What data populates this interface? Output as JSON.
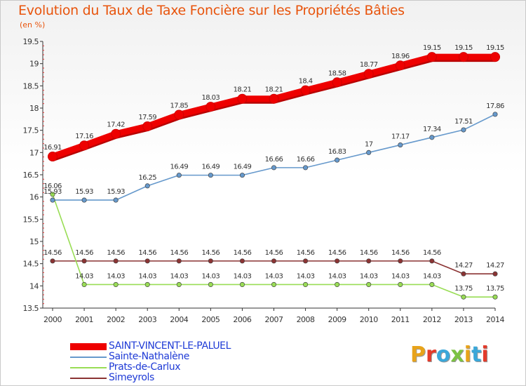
{
  "header": {
    "title": "Evolution du Taux de Taxe Foncière sur les Propriétés Bâties",
    "unit": "(en %)"
  },
  "logo": {
    "text": "Proxiti",
    "colors": [
      "#e8a31a",
      "#e33b2b",
      "#3aa7d9",
      "#7cc242",
      "#e8a31a",
      "#3aa7d9",
      "#e33b2b"
    ]
  },
  "chart_data": {
    "type": "line",
    "title": "Evolution du Taux de Taxe Foncière sur les Propriétés Bâties",
    "ylabel": "(en %)",
    "xlabel": "",
    "x": [
      "2000",
      "2001",
      "2002",
      "2003",
      "2004",
      "2005",
      "2006",
      "2007",
      "2008",
      "2009",
      "2010",
      "2011",
      "2012",
      "2013",
      "2014"
    ],
    "ylim": [
      13.5,
      19.5
    ],
    "yticks": [
      "13.5",
      "14",
      "14.5",
      "15",
      "15.5",
      "16",
      "16.5",
      "17",
      "17.5",
      "18",
      "18.5",
      "19",
      "19.5"
    ],
    "grid": false,
    "legend": "bottom-left",
    "series": [
      {
        "name": "SAINT-VINCENT-LE-PALUEL",
        "color": "#ee0000",
        "values": [
          16.91,
          17.16,
          17.42,
          17.59,
          17.85,
          18.03,
          18.21,
          18.21,
          18.4,
          18.58,
          18.77,
          18.96,
          19.15,
          19.15,
          19.15
        ],
        "labels": [
          "16.91",
          "17.16",
          "17.42",
          "17.59",
          "17.85",
          "18.03",
          "18.21",
          "18.21",
          "18.4",
          "18.58",
          "18.77",
          "18.96",
          "19.15",
          "19.15",
          "19.15"
        ]
      },
      {
        "name": "Sainte-Nathalène",
        "color": "#6699cc",
        "values": [
          15.93,
          15.93,
          15.93,
          16.25,
          16.49,
          16.49,
          16.49,
          16.66,
          16.66,
          16.83,
          17,
          17.17,
          17.34,
          17.51,
          17.86
        ],
        "labels": [
          "15.93",
          "15.93",
          "15.93",
          "16.25",
          "16.49",
          "16.49",
          "16.49",
          "16.66",
          "16.66",
          "16.83",
          "17",
          "17.17",
          "17.34",
          "17.51",
          "17.86"
        ]
      },
      {
        "name": "Prats-de-Carlux",
        "color": "#99dd55",
        "values": [
          16.06,
          14.03,
          14.03,
          14.03,
          14.03,
          14.03,
          14.03,
          14.03,
          14.03,
          14.03,
          14.03,
          14.03,
          14.03,
          13.75,
          13.75
        ],
        "labels": [
          "16.06",
          "14.03",
          "14.03",
          "14.03",
          "14.03",
          "14.03",
          "14.03",
          "14.03",
          "14.03",
          "14.03",
          "14.03",
          "14.03",
          "14.03",
          "13.75",
          "13.75"
        ]
      },
      {
        "name": "Simeyrols",
        "color": "#8b3333",
        "values": [
          14.56,
          14.56,
          14.56,
          14.56,
          14.56,
          14.56,
          14.56,
          14.56,
          14.56,
          14.56,
          14.56,
          14.56,
          14.56,
          14.27,
          14.27
        ],
        "labels": [
          "14.56",
          "14.56",
          "14.56",
          "14.56",
          "14.56",
          "14.56",
          "14.56",
          "14.56",
          "14.56",
          "14.56",
          "14.56",
          "14.56",
          "14.56",
          "14.27",
          "14.27"
        ]
      }
    ]
  }
}
